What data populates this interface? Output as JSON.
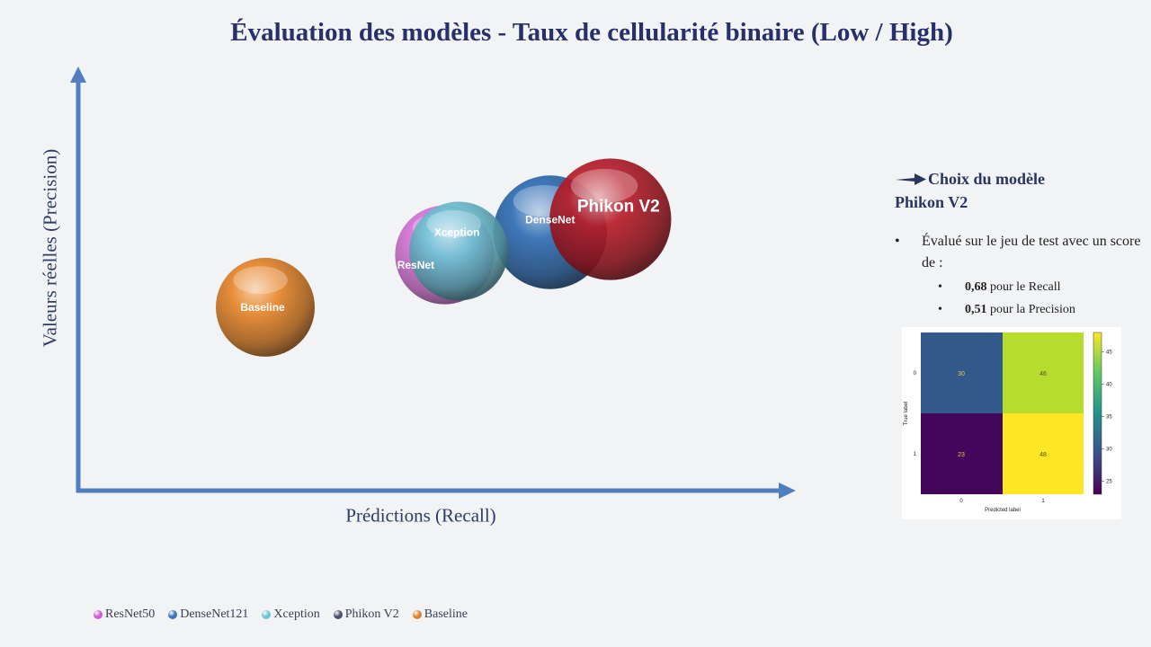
{
  "title": "Évaluation des modèles - Taux de cellularité binaire (Low / High)",
  "chart_data": {
    "type": "scatter",
    "title": "Évaluation des modèles - Taux de cellularité binaire (Low / High)",
    "xlabel": "Prédictions (Recall)",
    "ylabel": "Valeurs réelles (Precision)",
    "xlim": [
      0,
      1
    ],
    "ylim": [
      0,
      1
    ],
    "grid": false,
    "legend_position": "bottom-left",
    "series": [
      {
        "name": "ResNet50",
        "label": "ResNet",
        "x": 0.517,
        "y": 0.563,
        "size": 1.0,
        "color": "#d66ad6"
      },
      {
        "name": "DenseNet121",
        "label": "DenseNet",
        "x": 0.666,
        "y": 0.617,
        "size": 1.15,
        "color": "#2f6db3"
      },
      {
        "name": "Xception",
        "label": "Xception",
        "x": 0.537,
        "y": 0.572,
        "size": 1.0,
        "color": "#6fc4d6"
      },
      {
        "name": "Phikon V2",
        "label": "Phikon V2",
        "x": 0.751,
        "y": 0.648,
        "size": 1.23,
        "color": "#b81d2a"
      },
      {
        "name": "Baseline",
        "label": "Baseline",
        "x": 0.264,
        "y": 0.438,
        "size": 1.0,
        "color": "#e8862a"
      }
    ]
  },
  "legend": [
    {
      "label": "ResNet50",
      "color": "#d25bd6"
    },
    {
      "label": "DenseNet121",
      "color": "#3b74b8"
    },
    {
      "label": "Xception",
      "color": "#6ec4d4"
    },
    {
      "label": "Phikon V2",
      "color": "#4a5068"
    },
    {
      "label": "Baseline",
      "color": "#e07f2a"
    }
  ],
  "panel": {
    "heading_line1": "Choix du modèle",
    "heading_line2": "Phikon V2",
    "bullet_main": "Évalué sur le jeu de test avec un score de :",
    "recall_value": "0,68",
    "recall_text": " pour le Recall",
    "precision_value": "0,51",
    "precision_text": " pour la Precision"
  },
  "confusion_matrix": {
    "cells": [
      [
        30,
        46
      ],
      [
        23,
        48
      ]
    ],
    "row_ticks": [
      "0",
      "1"
    ],
    "col_ticks": [
      "0",
      "1"
    ],
    "xlabel": "Predicted label",
    "ylabel": "True label",
    "colorbar_ticks": [
      "45",
      "40",
      "35",
      "30",
      "25"
    ],
    "colorbar_values": [
      45,
      40,
      35,
      30,
      25
    ],
    "colorbar_range": [
      23,
      48
    ],
    "colors": {
      "c30": "#33588a",
      "c46": "#b6dd2e",
      "c23": "#44065a",
      "c48": "#fde725"
    }
  }
}
